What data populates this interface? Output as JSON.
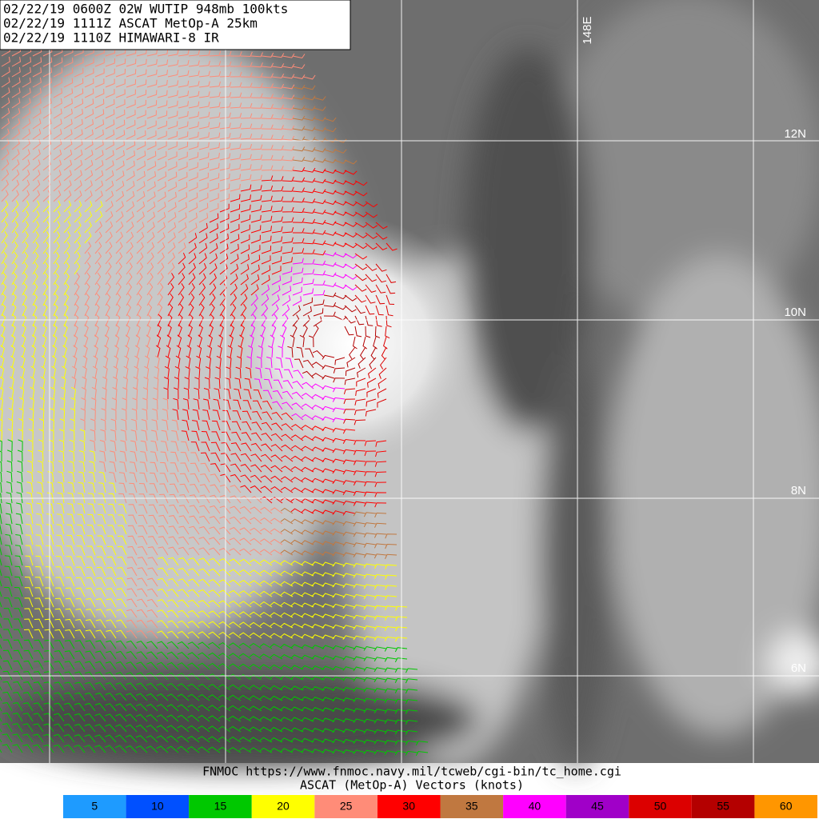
{
  "header": {
    "lines": [
      "02/22/19 0600Z  02W WUTIP 948mb 100kts",
      "02/22/19 1111Z  ASCAT MetOp-A 25km",
      "02/22/19 1110Z  HIMAWARI-8 IR"
    ]
  },
  "grid_labels": {
    "longitude": "148E",
    "latitudes": [
      "12N",
      "10N",
      "8N",
      "6N"
    ]
  },
  "footer": {
    "lines": [
      "FNMOC https://www.fnmoc.navy.mil/tcweb/cgi-bin/tc_home.cgi",
      "ASCAT (MetOp-A) Vectors (knots)"
    ]
  },
  "legend": {
    "items": [
      {
        "value": 5,
        "color": "#1e9bff"
      },
      {
        "value": 10,
        "color": "#0050ff"
      },
      {
        "value": 15,
        "color": "#00c800"
      },
      {
        "value": 20,
        "color": "#ffff00"
      },
      {
        "value": 25,
        "color": "#ff8c78"
      },
      {
        "value": 30,
        "color": "#ff0000"
      },
      {
        "value": 35,
        "color": "#c07840"
      },
      {
        "value": 40,
        "color": "#ff00ff"
      },
      {
        "value": 45,
        "color": "#a000c8"
      },
      {
        "value": 50,
        "color": "#dc0000"
      },
      {
        "value": 55,
        "color": "#b40000"
      },
      {
        "value": 60,
        "color": "#ff9600"
      }
    ]
  }
}
